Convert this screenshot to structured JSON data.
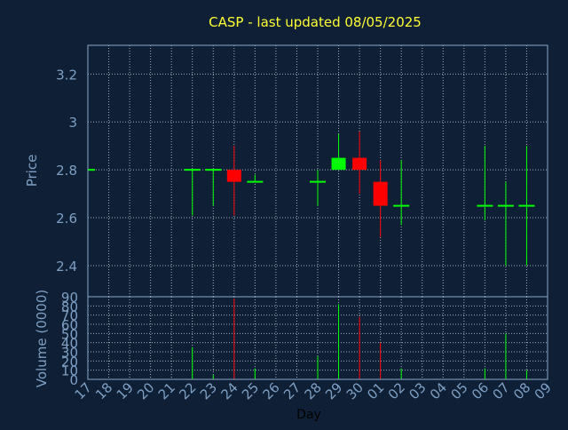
{
  "colors": {
    "background": "#0f2036",
    "frame": "#8aa8c8",
    "grid": "#c8d2dc",
    "title": "#ffff33",
    "axis_text": "#7f9fc4",
    "axis_title": "#7f9fc4",
    "up": "#00ff00",
    "down": "#ff0000"
  },
  "chart_data": {
    "type": "candlestick",
    "title": "CASP - last updated 08/05/2025",
    "xlabel": "Day",
    "ylabel": "Price",
    "volume_label": "Volume (0000)",
    "ylim": [
      2.27,
      3.32
    ],
    "yticks": [
      "2.4",
      "2.6",
      "2.8",
      "3",
      "3.2"
    ],
    "volume_ylim": [
      0,
      90
    ],
    "volume_yticks": [
      "0",
      "10",
      "20",
      "30",
      "40",
      "50",
      "60",
      "70",
      "80",
      "90"
    ],
    "grid": true,
    "categories": [
      "17",
      "18",
      "19",
      "20",
      "21",
      "22",
      "23",
      "24",
      "25",
      "26",
      "27",
      "28",
      "29",
      "30",
      "01",
      "02",
      "03",
      "04",
      "05",
      "06",
      "07",
      "08",
      "09"
    ],
    "candles": [
      {
        "day": "17",
        "open": 2.8,
        "high": 2.8,
        "low": 2.8,
        "close": 2.8,
        "volume": 0
      },
      {
        "day": "22",
        "open": 2.8,
        "high": 2.8,
        "low": 2.61,
        "close": 2.8,
        "volume": 35
      },
      {
        "day": "23",
        "open": 2.8,
        "high": 2.8,
        "low": 2.65,
        "close": 2.8,
        "volume": 5
      },
      {
        "day": "24",
        "open": 2.8,
        "high": 2.9,
        "low": 2.61,
        "close": 2.75,
        "volume": 88
      },
      {
        "day": "25",
        "open": 2.75,
        "high": 2.78,
        "low": 2.75,
        "close": 2.75,
        "volume": 12
      },
      {
        "day": "28",
        "open": 2.75,
        "high": 2.8,
        "low": 2.65,
        "close": 2.75,
        "volume": 25
      },
      {
        "day": "29",
        "open": 2.8,
        "high": 2.95,
        "low": 2.8,
        "close": 2.85,
        "volume": 82
      },
      {
        "day": "30",
        "open": 2.85,
        "high": 2.96,
        "low": 2.7,
        "close": 2.8,
        "volume": 68
      },
      {
        "day": "01",
        "open": 2.75,
        "high": 2.84,
        "low": 2.52,
        "close": 2.65,
        "volume": 40
      },
      {
        "day": "02",
        "open": 2.65,
        "high": 2.84,
        "low": 2.57,
        "close": 2.65,
        "volume": 12
      },
      {
        "day": "06",
        "open": 2.65,
        "high": 2.9,
        "low": 2.59,
        "close": 2.65,
        "volume": 12
      },
      {
        "day": "07",
        "open": 2.65,
        "high": 2.75,
        "low": 2.4,
        "close": 2.65,
        "volume": 50
      },
      {
        "day": "08",
        "open": 2.65,
        "high": 2.9,
        "low": 2.4,
        "close": 2.65,
        "volume": 10
      }
    ]
  }
}
